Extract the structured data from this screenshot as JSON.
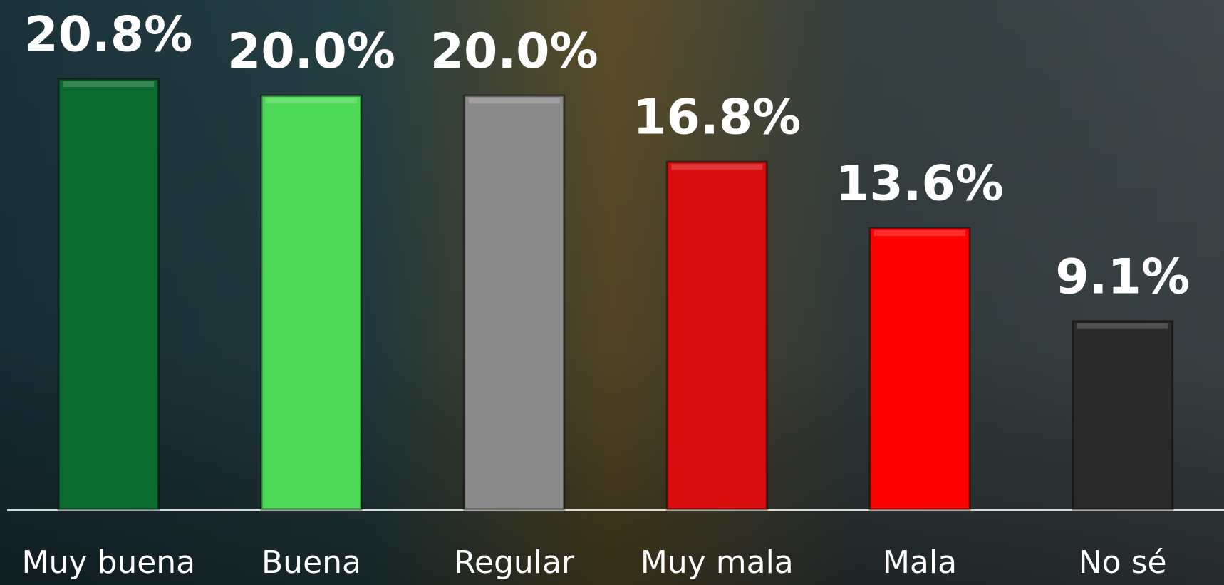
{
  "chart_data": {
    "type": "bar",
    "categories": [
      "Muy buena",
      "Buena",
      "Regular",
      "Muy mala",
      "Mala",
      "No sé"
    ],
    "values": [
      20.8,
      20.0,
      20.0,
      16.8,
      13.6,
      9.1
    ],
    "value_labels": [
      "20.8%",
      "20.0%",
      "20.0%",
      "16.8%",
      "13.6%",
      "9.1%"
    ],
    "colors": [
      "#0b6b2e",
      "#4cd955",
      "#8a8a8a",
      "#d90d0d",
      "#ff0000",
      "#2a2a2a"
    ]
  }
}
